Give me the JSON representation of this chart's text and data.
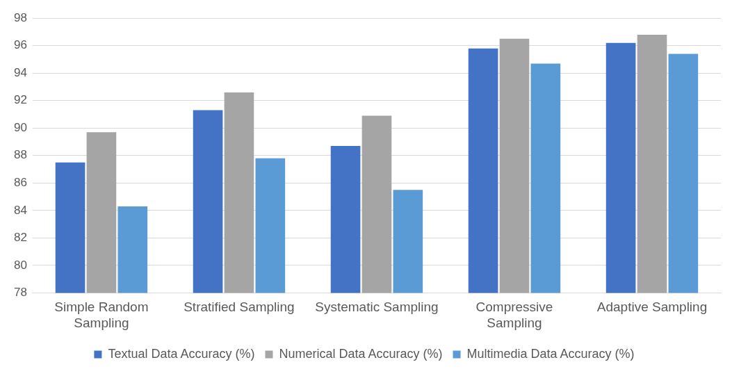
{
  "chart_data": {
    "type": "bar",
    "categories": [
      "Simple Random Sampling",
      "Stratified Sampling",
      "Systematic Sampling",
      "Compressive Sampling",
      "Adaptive Sampling"
    ],
    "series": [
      {
        "name": "Textual Data Accuracy (%)",
        "color": "#4472c4",
        "values": [
          87.5,
          91.3,
          88.7,
          95.8,
          96.2
        ]
      },
      {
        "name": "Numerical Data Accuracy (%)",
        "color": "#a5a5a5",
        "values": [
          89.7,
          92.6,
          90.9,
          96.5,
          96.8
        ]
      },
      {
        "name": "Multimedia Data Accuracy (%)",
        "color": "#5b9bd5",
        "values": [
          84.3,
          87.8,
          85.5,
          94.7,
          95.4
        ]
      }
    ],
    "ylim": [
      78,
      98
    ],
    "yticks": [
      78,
      80,
      82,
      84,
      86,
      88,
      90,
      92,
      94,
      96,
      98
    ],
    "grid": "y",
    "legend": "bottom"
  }
}
